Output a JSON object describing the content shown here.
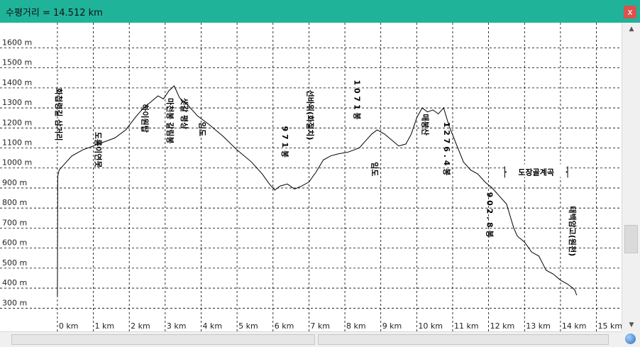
{
  "window": {
    "title": "수평거리 = 14.512 km",
    "close_label": "x"
  },
  "chart_data": {
    "type": "line",
    "title": "수평거리 = 14.512 km",
    "xlim": [
      -1.4,
      15.7
    ],
    "ylim": [
      255,
      1690
    ],
    "grid": true,
    "x_ticks": [
      0,
      1,
      2,
      3,
      4,
      5,
      6,
      7,
      8,
      9,
      10,
      11,
      12,
      13,
      14,
      15
    ],
    "x_tick_labels": [
      "0 km",
      "1 km",
      "2 km",
      "3 km",
      "4 km",
      "5 km",
      "6 km",
      "7 km",
      "8 km",
      "9 km",
      "10 km",
      "11 km",
      "12 km",
      "13 km",
      "14 km",
      "15 km"
    ],
    "y_ticks": [
      300,
      400,
      500,
      600,
      700,
      800,
      900,
      1000,
      1100,
      1200,
      1300,
      1400,
      1500,
      1600
    ],
    "y_tick_labels": [
      "300 m",
      "400 m",
      "500 m",
      "600 m",
      "700 m",
      "800 m",
      "900 m",
      "1000 m",
      "1100 m",
      "1200 m",
      "1300 m",
      "1400 m",
      "1500 m",
      "1600 m"
    ],
    "series": [
      {
        "x": [
          0,
          0.01,
          0.05,
          0.2,
          0.4,
          0.7,
          1.0,
          1.3,
          1.6,
          1.9,
          2.2,
          2.4,
          2.6,
          2.8,
          2.95,
          3.1,
          3.25,
          3.4,
          3.6,
          3.9,
          4.2,
          4.6,
          5.0,
          5.4,
          5.7,
          5.9,
          6.05,
          6.2,
          6.4,
          6.6,
          6.8,
          7.0,
          7.2,
          7.4,
          7.6,
          7.8,
          8.1,
          8.4,
          8.6,
          8.75,
          8.9,
          9.1,
          9.3,
          9.5,
          9.7,
          9.85,
          10.0,
          10.15,
          10.3,
          10.45,
          10.6,
          10.75,
          10.9,
          11.1,
          11.3,
          11.5,
          11.7,
          11.9,
          12.1,
          12.3,
          12.5,
          12.6,
          12.7,
          12.8,
          13.0,
          13.2,
          13.4,
          13.6,
          13.8,
          14.0,
          14.2,
          14.35,
          14.4,
          14.45
        ],
        "y": [
          360,
          960,
          990,
          1020,
          1060,
          1090,
          1110,
          1130,
          1150,
          1190,
          1260,
          1300,
          1330,
          1360,
          1345,
          1385,
          1410,
          1350,
          1320,
          1260,
          1220,
          1160,
          1090,
          1030,
          970,
          920,
          890,
          910,
          920,
          895,
          910,
          930,
          980,
          1040,
          1060,
          1070,
          1080,
          1100,
          1140,
          1170,
          1190,
          1170,
          1140,
          1110,
          1120,
          1170,
          1250,
          1300,
          1280,
          1290,
          1270,
          1300,
          1210,
          1120,
          1030,
          990,
          970,
          930,
          900,
          860,
          820,
          760,
          700,
          660,
          630,
          580,
          560,
          490,
          470,
          440,
          420,
          400,
          390,
          365
        ]
      }
    ],
    "annotations": [
      "화첩령길 삼거리",
      "도롱이연못",
      "하이원탑",
      "마천봉 갈림봉",
      "샛갈 평상",
      "임도",
      "9 7 1 봉",
      "선바위(화절치)",
      "1 0 7 1 봉",
      "임도",
      "매봉산",
      "1 2 7 6 . 4 봉",
      "도장골계곡",
      "9 0 2 . 8 봉",
      "태백암고(원천)"
    ]
  }
}
